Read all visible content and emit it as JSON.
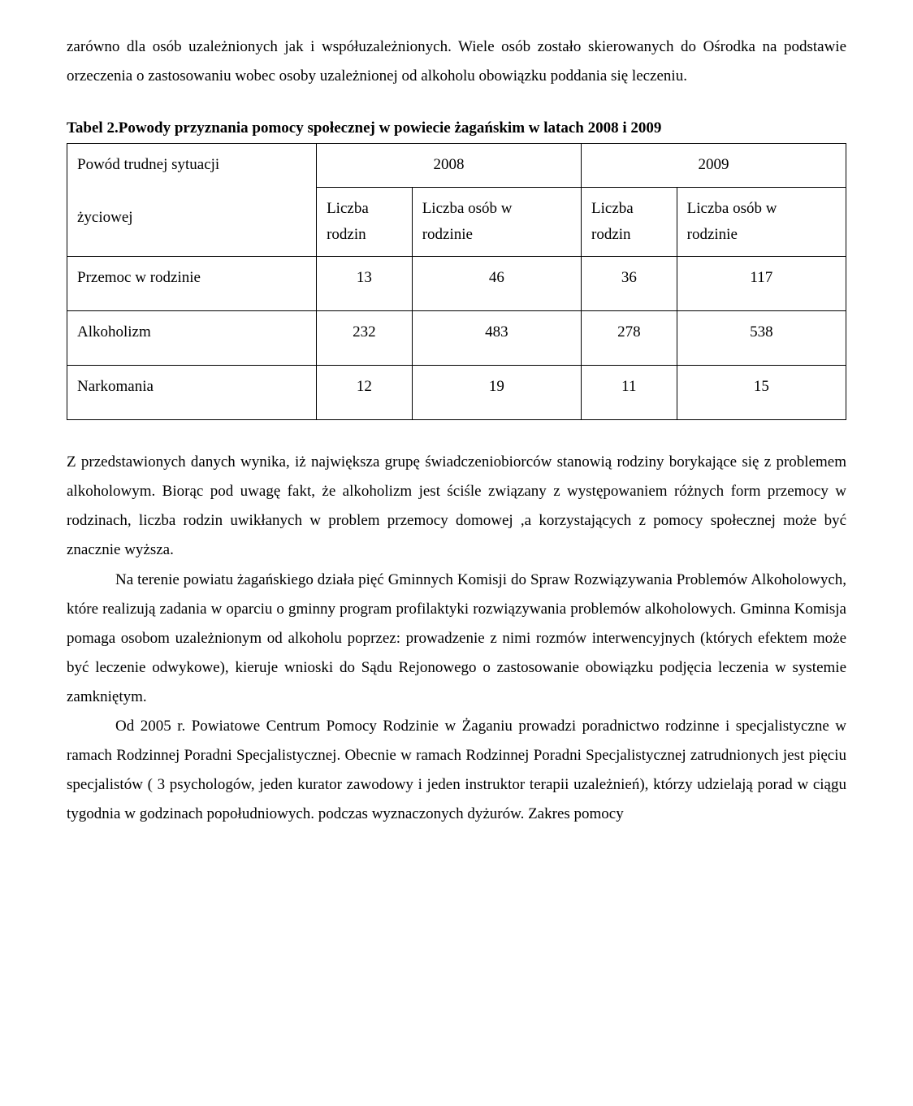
{
  "intro_para": "zarówno dla osób uzależnionych jak i współuzależnionych. Wiele osób zostało skierowanych do Ośrodka na podstawie orzeczenia o zastosowaniu wobec osoby uzależnionej od alkoholu obowiązku poddania się leczeniu.",
  "caption_label": "Tabel 2.",
  "caption_text": "Powody przyznania pomocy społecznej w powiecie żagańskim w latach 2008 i 2009",
  "table": {
    "row_header_line1": "Powód trudnej sytuacji",
    "row_header_line2": "życiowej",
    "year_2008": "2008",
    "year_2009": "2009",
    "col_liczba": "Liczba",
    "col_rodzin": "rodzin",
    "col_liczba_osob_w": "Liczba osób w",
    "col_rodzinie": "rodzinie",
    "rows": [
      {
        "label": "Przemoc w rodzinie",
        "a": "13",
        "b": "46",
        "c": "36",
        "d": "117"
      },
      {
        "label": "Alkoholizm",
        "a": "232",
        "b": "483",
        "c": "278",
        "d": "538"
      },
      {
        "label": "Narkomania",
        "a": "12",
        "b": "19",
        "c": "11",
        "d": "15"
      }
    ]
  },
  "para1": "Z przedstawionych danych wynika, iż największa grupę świadczeniobiorców stanowią rodziny borykające się z problemem alkoholowym. Biorąc pod uwagę fakt, że alkoholizm jest ściśle związany z występowaniem różnych form przemocy w rodzinach, liczba rodzin uwikłanych w problem przemocy domowej ,a korzystających z pomocy społecznej może być znacznie wyższa.",
  "para2": "Na terenie powiatu żagańskiego działa pięć Gminnych Komisji do Spraw Rozwiązywania Problemów Alkoholowych, które realizują zadania w oparciu o gminny program profilaktyki rozwiązywania problemów alkoholowych. Gminna Komisja pomaga osobom uzależnionym od alkoholu poprzez: prowadzenie z nimi rozmów interwencyjnych (których efektem może być leczenie odwykowe), kieruje wnioski do Sądu Rejonowego o zastosowanie obowiązku podjęcia leczenia w systemie zamkniętym.",
  "para3": "Od 2005 r. Powiatowe Centrum Pomocy Rodzinie w Żaganiu prowadzi poradnictwo rodzinne i specjalistyczne w ramach Rodzinnej Poradni Specjalistycznej. Obecnie w ramach Rodzinnej Poradni Specjalistycznej zatrudnionych jest pięciu specjalistów ( 3 psychologów, jeden kurator zawodowy i jeden instruktor terapii uzależnień), którzy udzielają porad w ciągu tygodnia w godzinach popołudniowych. podczas wyznaczonych dyżurów. Zakres pomocy"
}
